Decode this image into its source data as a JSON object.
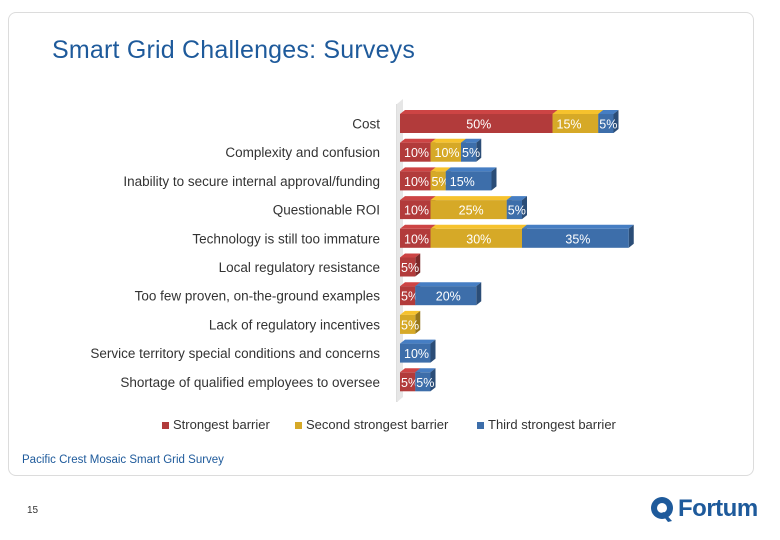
{
  "slide": {
    "title": "Smart Grid Challenges: Surveys",
    "source": "Pacific Crest Mosaic Smart Grid Survey",
    "page_number": "15",
    "logo_text": "Fortum"
  },
  "colors": {
    "strongest": "#b23b3b",
    "second": "#d6a927",
    "third": "#3d6eaa",
    "title": "#1e5a9b"
  },
  "chart_data": {
    "type": "bar",
    "orientation": "horizontal",
    "stacked": true,
    "categories": [
      "Cost",
      "Complexity and confusion",
      "Inability to secure internal approval/funding",
      "Questionable ROI",
      "Technology is still too immature",
      "Local regulatory resistance",
      "Too few proven, on-the-ground examples",
      "Lack of regulatory incentives",
      "Service territory special conditions and concerns",
      "Shortage of qualified employees to oversee"
    ],
    "series": [
      {
        "name": "Strongest barrier",
        "values": [
          50,
          10,
          10,
          10,
          10,
          5,
          5,
          0,
          0,
          5
        ]
      },
      {
        "name": "Second strongest barrier",
        "values": [
          15,
          10,
          5,
          25,
          30,
          0,
          0,
          5,
          0,
          0
        ]
      },
      {
        "name": "Third strongest barrier",
        "values": [
          5,
          5,
          15,
          5,
          35,
          0,
          20,
          0,
          10,
          5
        ]
      }
    ],
    "data_labels": [
      [
        "50%",
        "15%",
        "5%"
      ],
      [
        "10%",
        "10%",
        "5%"
      ],
      [
        "10%",
        "5%",
        "15%"
      ],
      [
        "10%",
        "25%",
        "5%"
      ],
      [
        "10%",
        "30%",
        "35%"
      ],
      [
        "5%",
        "",
        ""
      ],
      [
        "5%",
        "",
        "20%"
      ],
      [
        "",
        "5%",
        ""
      ],
      [
        "",
        "",
        "10%"
      ],
      [
        "5%",
        "",
        "5%"
      ]
    ],
    "legend_position": "bottom",
    "grid": false
  }
}
